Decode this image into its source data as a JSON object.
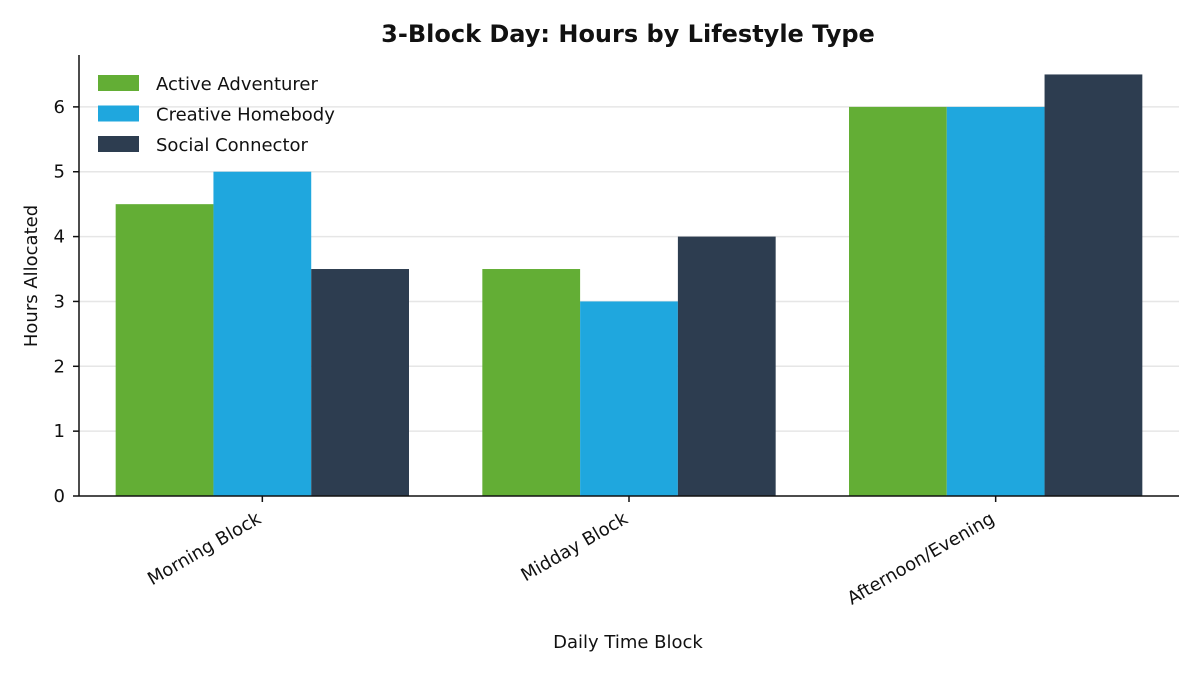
{
  "chart_data": {
    "type": "bar",
    "title": "3-Block Day: Hours by Lifestyle Type",
    "xlabel": "Daily Time Block",
    "ylabel": "Hours Allocated",
    "categories": [
      "Morning Block",
      "Midday Block",
      "Afternoon/Evening"
    ],
    "ylim": [
      0,
      6.8
    ],
    "yticks": [
      0,
      1,
      2,
      3,
      4,
      5,
      6
    ],
    "grid": "horizontal",
    "legend_position": "top-left",
    "series": [
      {
        "name": "Active Adventurer",
        "color": "#63ae35",
        "values": [
          4.5,
          3.5,
          6.0
        ]
      },
      {
        "name": "Creative Homebody",
        "color": "#1fa7de",
        "values": [
          5.0,
          3.0,
          6.0
        ]
      },
      {
        "name": "Social Connector",
        "color": "#2d3d50",
        "values": [
          3.5,
          4.0,
          6.5
        ]
      }
    ]
  }
}
